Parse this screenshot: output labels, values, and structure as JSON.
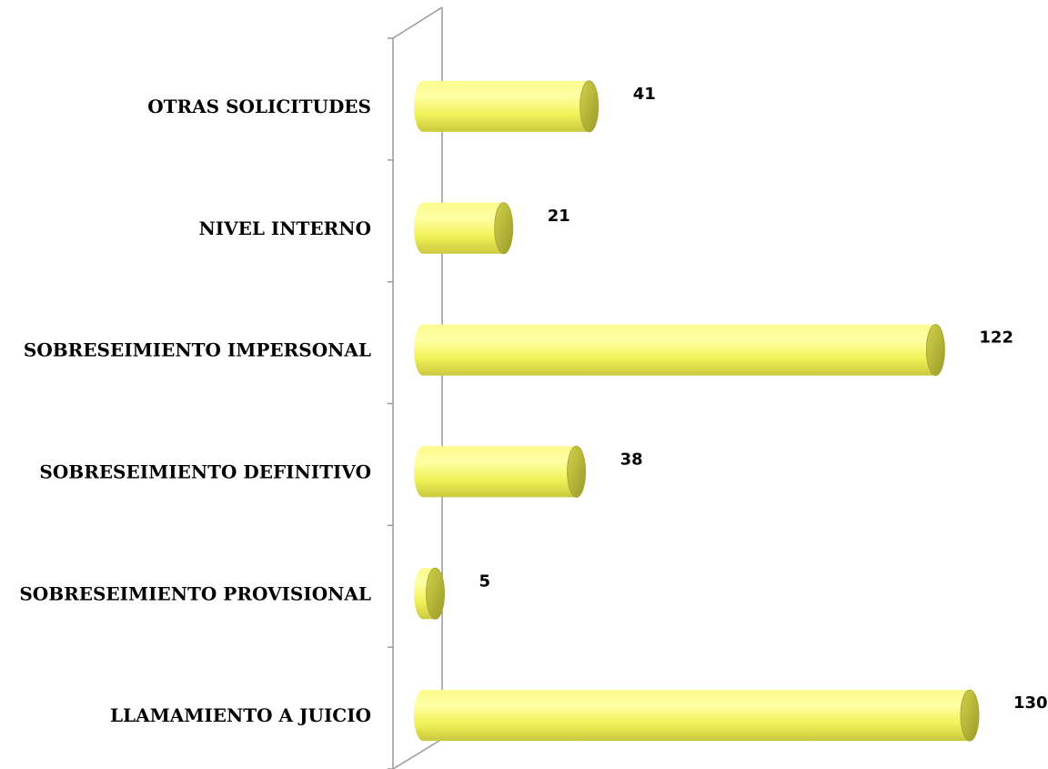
{
  "chart_data": {
    "type": "bar",
    "orientation": "horizontal",
    "style": "3d-cylinder",
    "title": "",
    "xlabel": "",
    "ylabel": "",
    "categories": [
      "OTRAS SOLICITUDES",
      "NIVEL INTERNO",
      "SOBRESEIMIENTO IMPERSONAL",
      "SOBRESEIMIENTO DEFINITIVO",
      "SOBRESEIMIENTO PROVISIONAL",
      "LLAMAMIENTO A JUICIO"
    ],
    "values": [
      41,
      21,
      122,
      38,
      5,
      130
    ],
    "xlim": [
      0,
      140
    ],
    "grid": false,
    "legend": "none",
    "colors": {
      "bar_light": "#ffffa0",
      "bar_mid": "#f0f050",
      "bar_dark": "#c8c83c",
      "bar_cap": "#b4b432",
      "wall": "#999999"
    }
  }
}
